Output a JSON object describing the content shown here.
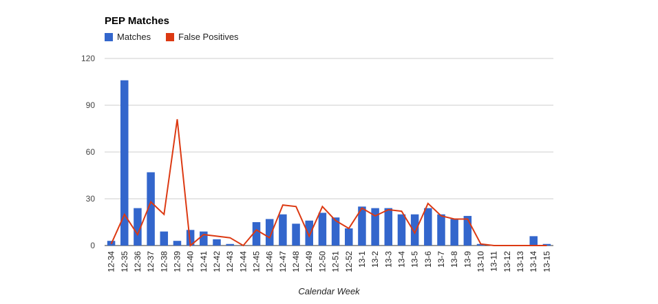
{
  "chart_data": {
    "type": "bar",
    "title": "PEP Matches",
    "xlabel": "Calendar Week",
    "ylabel": "",
    "ylim": [
      0,
      120
    ],
    "yticks": [
      0,
      30,
      60,
      90,
      120
    ],
    "grid": true,
    "legend_position": "top-left",
    "categories": [
      "12-34",
      "12-35",
      "12-36",
      "12-37",
      "12-38",
      "12-39",
      "12-40",
      "12-41",
      "12-42",
      "12-43",
      "12-44",
      "12-45",
      "12-46",
      "12-47",
      "12-48",
      "12-49",
      "12-50",
      "12-51",
      "12-52",
      "13-1",
      "13-2",
      "13-3",
      "13-4",
      "13-5",
      "13-6",
      "13-7",
      "13-8",
      "13-9",
      "13-10",
      "13-11",
      "13-12",
      "13-13",
      "13-14",
      "13-15"
    ],
    "series": [
      {
        "name": "Matches",
        "type": "bar",
        "color": "#3366cc",
        "values": [
          3,
          106,
          24,
          47,
          9,
          3,
          10,
          9,
          4,
          1,
          0,
          15,
          17,
          20,
          14,
          16,
          21,
          18,
          11,
          25,
          24,
          24,
          20,
          20,
          24,
          20,
          17,
          19,
          1,
          0,
          0,
          0,
          6,
          1
        ]
      },
      {
        "name": "False Positives",
        "type": "line",
        "color": "#dc3912",
        "values": [
          1,
          20,
          7,
          28,
          20,
          81,
          0,
          7,
          6,
          5,
          0,
          10,
          5,
          26,
          25,
          6,
          25,
          16,
          11,
          24,
          19,
          23,
          22,
          8,
          27,
          19,
          17,
          17,
          1,
          0,
          0,
          0,
          0,
          0
        ]
      }
    ]
  }
}
